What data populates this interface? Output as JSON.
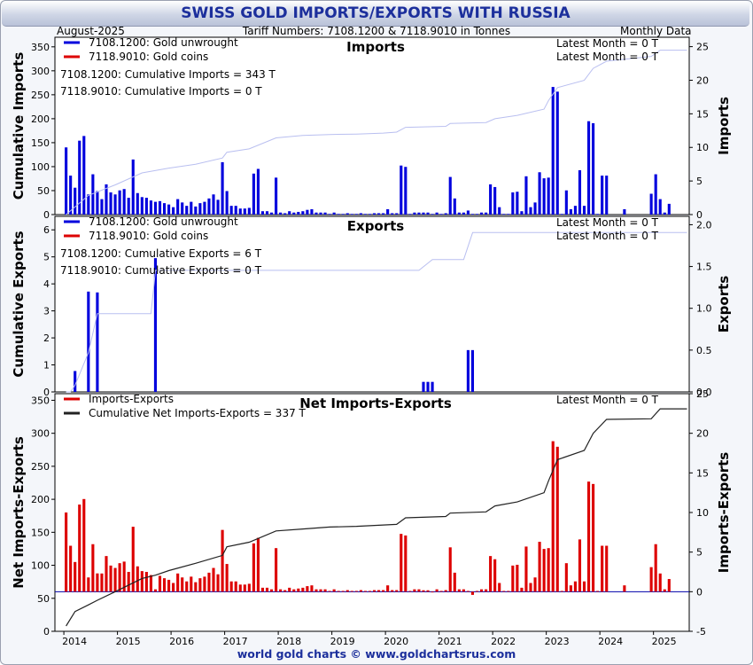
{
  "header": {
    "title": "SWISS GOLD IMPORTS/EXPORTS WITH RUSSIA",
    "date": "August-2025",
    "tariff": "Tariff Numbers: 7108.1200 & 7118.9010 in Tonnes",
    "frequency": "Monthly Data"
  },
  "footer": "world gold charts © www.goldchartsrus.com",
  "colors": {
    "blue": "#0000dd",
    "red": "#dd0000",
    "cum_light": "#b9bff0",
    "cum_dark": "#222222"
  },
  "chart_data": [
    {
      "type": "bar",
      "title": "Imports",
      "ylabel": "Cumulative Imports",
      "y2label": "Imports",
      "ylim": [
        0,
        370
      ],
      "yticks": [
        0,
        50,
        100,
        150,
        200,
        250,
        300,
        350
      ],
      "y2lim": [
        0,
        26.4
      ],
      "y2ticks": [
        0,
        5,
        10,
        15,
        20,
        25
      ],
      "legend": [
        {
          "name": "7108.1200: Gold unwrought",
          "color": "#0000dd"
        },
        {
          "name": "7118.9010: Gold coins",
          "color": "#dd0000"
        }
      ],
      "annotations": [
        "Latest Month = 0 T",
        "Latest Month = 0 T",
        "7108.1200: Cumulative Imports = 343 T",
        "7118.9010: Cumulative Imports = 0 T"
      ],
      "bars": [
        [
          "2014-01",
          10
        ],
        [
          "2014-02",
          5.8
        ],
        [
          "2014-03",
          4
        ],
        [
          "2014-04",
          11
        ],
        [
          "2014-05",
          11.7
        ],
        [
          "2014-06",
          3
        ],
        [
          "2014-07",
          6
        ],
        [
          "2014-08",
          3.5
        ],
        [
          "2014-09",
          2.3
        ],
        [
          "2014-10",
          4.5
        ],
        [
          "2014-11",
          3.3
        ],
        [
          "2014-12",
          3
        ],
        [
          "2015-01",
          3.6
        ],
        [
          "2015-02",
          3.8
        ],
        [
          "2015-03",
          2.5
        ],
        [
          "2015-04",
          8.2
        ],
        [
          "2015-05",
          3.2
        ],
        [
          "2015-06",
          2.6
        ],
        [
          "2015-07",
          2.5
        ],
        [
          "2015-08",
          2.1
        ],
        [
          "2015-09",
          1.9
        ],
        [
          "2015-10",
          2
        ],
        [
          "2015-11",
          1.7
        ],
        [
          "2015-12",
          1.5
        ],
        [
          "2016-01",
          1.1
        ],
        [
          "2016-02",
          2.3
        ],
        [
          "2016-03",
          1.8
        ],
        [
          "2016-04",
          1.3
        ],
        [
          "2016-05",
          1.9
        ],
        [
          "2016-06",
          1.2
        ],
        [
          "2016-07",
          1.7
        ],
        [
          "2016-08",
          1.9
        ],
        [
          "2016-09",
          2.4
        ],
        [
          "2016-10",
          3
        ],
        [
          "2016-11",
          2.2
        ],
        [
          "2016-12",
          7.8
        ],
        [
          "2017-01",
          3.5
        ],
        [
          "2017-02",
          1.3
        ],
        [
          "2017-03",
          1.3
        ],
        [
          "2017-04",
          0.9
        ],
        [
          "2017-05",
          0.9
        ],
        [
          "2017-06",
          1
        ],
        [
          "2017-07",
          6.1
        ],
        [
          "2017-08",
          6.8
        ],
        [
          "2017-09",
          0.5
        ],
        [
          "2017-10",
          0.5
        ],
        [
          "2017-11",
          0.3
        ],
        [
          "2017-12",
          5.5
        ],
        [
          "2018-01",
          0.3
        ],
        [
          "2018-02",
          0.2
        ],
        [
          "2018-03",
          0.5
        ],
        [
          "2018-04",
          0.3
        ],
        [
          "2018-05",
          0.4
        ],
        [
          "2018-06",
          0.5
        ],
        [
          "2018-07",
          0.7
        ],
        [
          "2018-08",
          0.8
        ],
        [
          "2018-09",
          0.3
        ],
        [
          "2018-10",
          0.3
        ],
        [
          "2018-11",
          0.3
        ],
        [
          "2018-12",
          0.1
        ],
        [
          "2019-01",
          0.3
        ],
        [
          "2019-02",
          0.1
        ],
        [
          "2019-03",
          0.1
        ],
        [
          "2019-04",
          0.2
        ],
        [
          "2019-05",
          0.1
        ],
        [
          "2019-06",
          0.1
        ],
        [
          "2019-07",
          0.2
        ],
        [
          "2019-08",
          0.1
        ],
        [
          "2019-09",
          0.1
        ],
        [
          "2019-10",
          0.2
        ],
        [
          "2019-11",
          0.2
        ],
        [
          "2019-12",
          0.2
        ],
        [
          "2020-01",
          0.8
        ],
        [
          "2020-02",
          0.2
        ],
        [
          "2020-03",
          0.2
        ],
        [
          "2020-04",
          7.3
        ],
        [
          "2020-05",
          7.1
        ],
        [
          "2020-06",
          0.1
        ],
        [
          "2020-07",
          0.3
        ],
        [
          "2020-08",
          0.3
        ],
        [
          "2020-09",
          0.3
        ],
        [
          "2020-10",
          0.3
        ],
        [
          "2020-11",
          0.1
        ],
        [
          "2020-12",
          0.3
        ],
        [
          "2021-01",
          0.1
        ],
        [
          "2021-02",
          0.2
        ],
        [
          "2021-03",
          5.6
        ],
        [
          "2021-04",
          2.4
        ],
        [
          "2021-05",
          0.3
        ],
        [
          "2021-06",
          0.3
        ],
        [
          "2021-07",
          0.6
        ],
        [
          "2021-08",
          0.1
        ],
        [
          "2021-09",
          0.1
        ],
        [
          "2021-10",
          0.3
        ],
        [
          "2021-11",
          0.3
        ],
        [
          "2021-12",
          4.5
        ],
        [
          "2022-01",
          4.1
        ],
        [
          "2022-02",
          1.1
        ],
        [
          "2022-03",
          0.1
        ],
        [
          "2022-04",
          0.1
        ],
        [
          "2022-05",
          3.3
        ],
        [
          "2022-06",
          3.4
        ],
        [
          "2022-07",
          0.5
        ],
        [
          "2022-08",
          5.7
        ],
        [
          "2022-09",
          1.1
        ],
        [
          "2022-10",
          1.8
        ],
        [
          "2022-11",
          6.3
        ],
        [
          "2022-12",
          5.4
        ],
        [
          "2023-01",
          5.5
        ],
        [
          "2023-02",
          19
        ],
        [
          "2023-03",
          18.3
        ],
        [
          "2023-04",
          0.1
        ],
        [
          "2023-05",
          3.6
        ],
        [
          "2023-06",
          0.8
        ],
        [
          "2023-07",
          1.3
        ],
        [
          "2023-08",
          6.6
        ],
        [
          "2023-09",
          1.3
        ],
        [
          "2023-10",
          13.9
        ],
        [
          "2023-11",
          13.6
        ],
        [
          "2023-12",
          0.1
        ],
        [
          "2024-01",
          5.8
        ],
        [
          "2024-02",
          5.8
        ],
        [
          "2024-03",
          0
        ],
        [
          "2024-04",
          0
        ],
        [
          "2024-05",
          0
        ],
        [
          "2024-06",
          0.8
        ],
        [
          "2024-07",
          0
        ],
        [
          "2024-08",
          0
        ],
        [
          "2024-09",
          0
        ],
        [
          "2024-10",
          0
        ],
        [
          "2024-11",
          0
        ],
        [
          "2024-12",
          3.1
        ],
        [
          "2025-01",
          6
        ],
        [
          "2025-02",
          2.3
        ],
        [
          "2025-03",
          0.3
        ],
        [
          "2025-04",
          1.6
        ],
        [
          "2025-05",
          0
        ],
        [
          "2025-06",
          0
        ]
      ],
      "cumulative": [
        [
          "2014-01",
          0
        ],
        [
          "2014-06",
          40
        ],
        [
          "2014-12",
          62
        ],
        [
          "2015-06",
          87
        ],
        [
          "2015-12",
          97
        ],
        [
          "2016-06",
          105
        ],
        [
          "2016-12",
          118
        ],
        [
          "2017-01",
          130
        ],
        [
          "2017-06",
          137
        ],
        [
          "2017-12",
          160
        ],
        [
          "2018-06",
          165
        ],
        [
          "2018-12",
          167
        ],
        [
          "2019-06",
          168
        ],
        [
          "2019-12",
          170
        ],
        [
          "2020-03",
          172
        ],
        [
          "2020-05",
          182
        ],
        [
          "2021-02",
          184
        ],
        [
          "2021-03",
          190
        ],
        [
          "2021-11",
          192
        ],
        [
          "2022-01",
          200
        ],
        [
          "2022-06",
          207
        ],
        [
          "2022-12",
          220
        ],
        [
          "2023-01",
          238
        ],
        [
          "2023-03",
          265
        ],
        [
          "2023-09",
          280
        ],
        [
          "2023-11",
          305
        ],
        [
          "2024-02",
          320
        ],
        [
          "2024-12",
          330
        ],
        [
          "2025-02",
          343
        ],
        [
          "2025-08",
          343
        ]
      ]
    },
    {
      "type": "bar",
      "title": "Exports",
      "ylabel": "Cumulative Exports",
      "y2label": "Exports",
      "ylim": [
        0,
        6.5
      ],
      "yticks": [
        0,
        1,
        2,
        3,
        4,
        5,
        6
      ],
      "y2lim": [
        0,
        2.1
      ],
      "y2ticks": [
        0.0,
        0.5,
        1.0,
        1.5,
        2.0
      ],
      "legend": [
        {
          "name": "7108.1200: Gold unwrought",
          "color": "#0000dd"
        },
        {
          "name": "7118.9010: Gold coins",
          "color": "#dd0000"
        }
      ],
      "annotations": [
        "Latest Month = 0 T",
        "Latest Month = 0 T",
        "7108.1200: Cumulative Exports = 6 T",
        "7118.9010: Cumulative Exports = 0 T"
      ],
      "bars": [
        [
          "2014-03",
          0.25
        ],
        [
          "2014-06",
          1.2
        ],
        [
          "2014-08",
          1.19
        ],
        [
          "2015-09",
          1.6
        ],
        [
          "2020-09",
          0.12
        ],
        [
          "2020-10",
          0.12
        ],
        [
          "2020-11",
          0.12
        ],
        [
          "2021-07",
          0.5
        ],
        [
          "2021-08",
          0.5
        ]
      ],
      "cumulative": [
        [
          "2014-01",
          0
        ],
        [
          "2014-02",
          0
        ],
        [
          "2014-03",
          0.25
        ],
        [
          "2014-06",
          1.45
        ],
        [
          "2014-08",
          2.9
        ],
        [
          "2015-08",
          2.9
        ],
        [
          "2015-09",
          4.5
        ],
        [
          "2020-08",
          4.5
        ],
        [
          "2020-11",
          4.9
        ],
        [
          "2021-06",
          4.9
        ],
        [
          "2021-08",
          5.9
        ],
        [
          "2025-08",
          5.9
        ]
      ]
    },
    {
      "type": "bar",
      "title": "Net Imports-Exports",
      "ylabel": "Net Imports-Exports",
      "y2label": "Imports-Exports",
      "ylim": [
        0,
        360
      ],
      "yticks": [
        0,
        50,
        100,
        150,
        200,
        250,
        300,
        350
      ],
      "y2lim": [
        -5,
        25
      ],
      "y2ticks": [
        -5,
        0,
        5,
        10,
        15,
        20,
        25
      ],
      "legend": [
        {
          "name": "Imports-Exports",
          "color": "#dd0000"
        },
        {
          "name": "Cumulative Net Imports-Exports = 337 T",
          "color": "#222222"
        }
      ],
      "annotations": [
        "Latest Month = 0 T"
      ],
      "bars_from_imports_minus_exports": true,
      "cumulative": [
        [
          "2014-01",
          8
        ],
        [
          "2014-03",
          30
        ],
        [
          "2014-06",
          40
        ],
        [
          "2014-08",
          47
        ],
        [
          "2014-12",
          60
        ],
        [
          "2015-06",
          80
        ],
        [
          "2015-09",
          85
        ],
        [
          "2015-12",
          92
        ],
        [
          "2016-06",
          103
        ],
        [
          "2016-12",
          115
        ],
        [
          "2017-01",
          128
        ],
        [
          "2017-06",
          135
        ],
        [
          "2017-12",
          152
        ],
        [
          "2018-06",
          155
        ],
        [
          "2018-12",
          158
        ],
        [
          "2019-06",
          159
        ],
        [
          "2019-12",
          161
        ],
        [
          "2020-03",
          162
        ],
        [
          "2020-05",
          172
        ],
        [
          "2021-02",
          174
        ],
        [
          "2021-03",
          179
        ],
        [
          "2021-11",
          181
        ],
        [
          "2022-01",
          190
        ],
        [
          "2022-06",
          196
        ],
        [
          "2022-12",
          210
        ],
        [
          "2023-01",
          228
        ],
        [
          "2023-03",
          260
        ],
        [
          "2023-09",
          274
        ],
        [
          "2023-11",
          300
        ],
        [
          "2024-02",
          321
        ],
        [
          "2024-12",
          322
        ],
        [
          "2025-02",
          337
        ],
        [
          "2025-08",
          337
        ]
      ]
    }
  ],
  "x_axis": {
    "ticks": [
      "2014",
      "2015",
      "2016",
      "2017",
      "2018",
      "2019",
      "2020",
      "2021",
      "2022",
      "2023",
      "2024",
      "2025"
    ],
    "range": [
      "2013-11",
      "2025-08"
    ]
  }
}
